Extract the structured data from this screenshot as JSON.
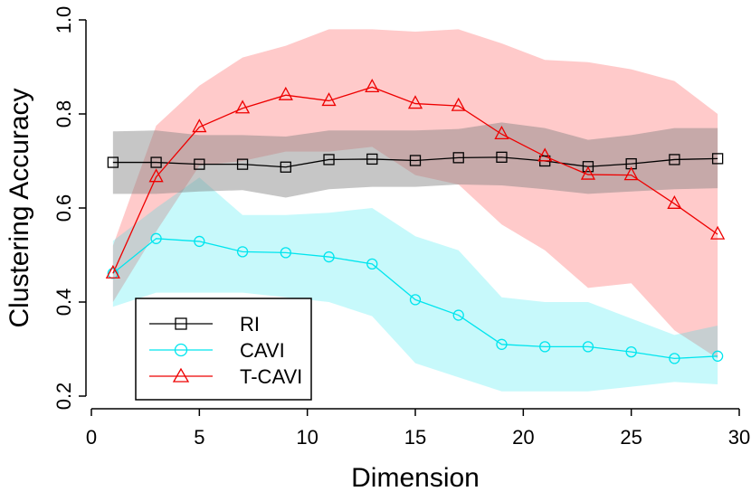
{
  "chart_data": {
    "type": "line",
    "title": "",
    "xlabel": "Dimension",
    "ylabel": "Clustering Accuracy",
    "xlim": [
      0,
      30
    ],
    "ylim": [
      0.2,
      1.0
    ],
    "xticks": [
      0,
      5,
      10,
      15,
      20,
      25,
      30
    ],
    "yticks": [
      0.2,
      0.4,
      0.6,
      0.8,
      1.0
    ],
    "xtick_labels": [
      "0",
      "5",
      "10",
      "15",
      "20",
      "25",
      "30"
    ],
    "ytick_labels": [
      "0.2",
      "0.4",
      "0.6",
      "0.8",
      "1.0"
    ],
    "x": [
      1,
      3,
      5,
      7,
      9,
      11,
      13,
      15,
      17,
      19,
      21,
      23,
      25,
      27,
      29
    ],
    "legend_position": "bottom-left",
    "series": [
      {
        "name": "RI",
        "color": "#000000",
        "band_color": "#808080",
        "marker": "square",
        "values": [
          0.697,
          0.697,
          0.693,
          0.693,
          0.687,
          0.703,
          0.704,
          0.701,
          0.707,
          0.708,
          0.7,
          0.688,
          0.694,
          0.703,
          0.705
        ],
        "lower": [
          0.63,
          0.63,
          0.635,
          0.638,
          0.622,
          0.64,
          0.645,
          0.645,
          0.65,
          0.648,
          0.64,
          0.63,
          0.635,
          0.64,
          0.642
        ],
        "upper": [
          0.763,
          0.765,
          0.755,
          0.755,
          0.752,
          0.765,
          0.765,
          0.765,
          0.768,
          0.782,
          0.77,
          0.745,
          0.755,
          0.77,
          0.77
        ]
      },
      {
        "name": "CAVI",
        "color": "#00e5ee",
        "band_color": "#00e5ee",
        "marker": "circle",
        "values": [
          0.461,
          0.535,
          0.529,
          0.507,
          0.505,
          0.496,
          0.481,
          0.405,
          0.372,
          0.31,
          0.305,
          0.305,
          0.294,
          0.28,
          0.285
        ],
        "lower": [
          0.39,
          0.42,
          0.42,
          0.42,
          0.41,
          0.4,
          0.37,
          0.27,
          0.24,
          0.21,
          0.21,
          0.21,
          0.22,
          0.23,
          0.225
        ],
        "upper": [
          0.53,
          0.6,
          0.665,
          0.585,
          0.585,
          0.59,
          0.6,
          0.54,
          0.51,
          0.41,
          0.4,
          0.4,
          0.365,
          0.33,
          0.35
        ]
      },
      {
        "name": "T-CAVI",
        "color": "#ee0000",
        "band_color": "#ff6666",
        "marker": "triangle",
        "values": [
          0.461,
          0.666,
          0.772,
          0.812,
          0.84,
          0.828,
          0.857,
          0.822,
          0.817,
          0.757,
          0.71,
          0.671,
          0.67,
          0.609,
          0.544
        ],
        "lower": [
          0.4,
          0.55,
          0.69,
          0.7,
          0.72,
          0.72,
          0.73,
          0.67,
          0.65,
          0.565,
          0.51,
          0.43,
          0.44,
          0.34,
          0.28
        ],
        "upper": [
          0.52,
          0.775,
          0.86,
          0.92,
          0.945,
          0.98,
          0.98,
          0.975,
          0.98,
          0.95,
          0.915,
          0.91,
          0.895,
          0.87,
          0.8
        ]
      }
    ]
  }
}
